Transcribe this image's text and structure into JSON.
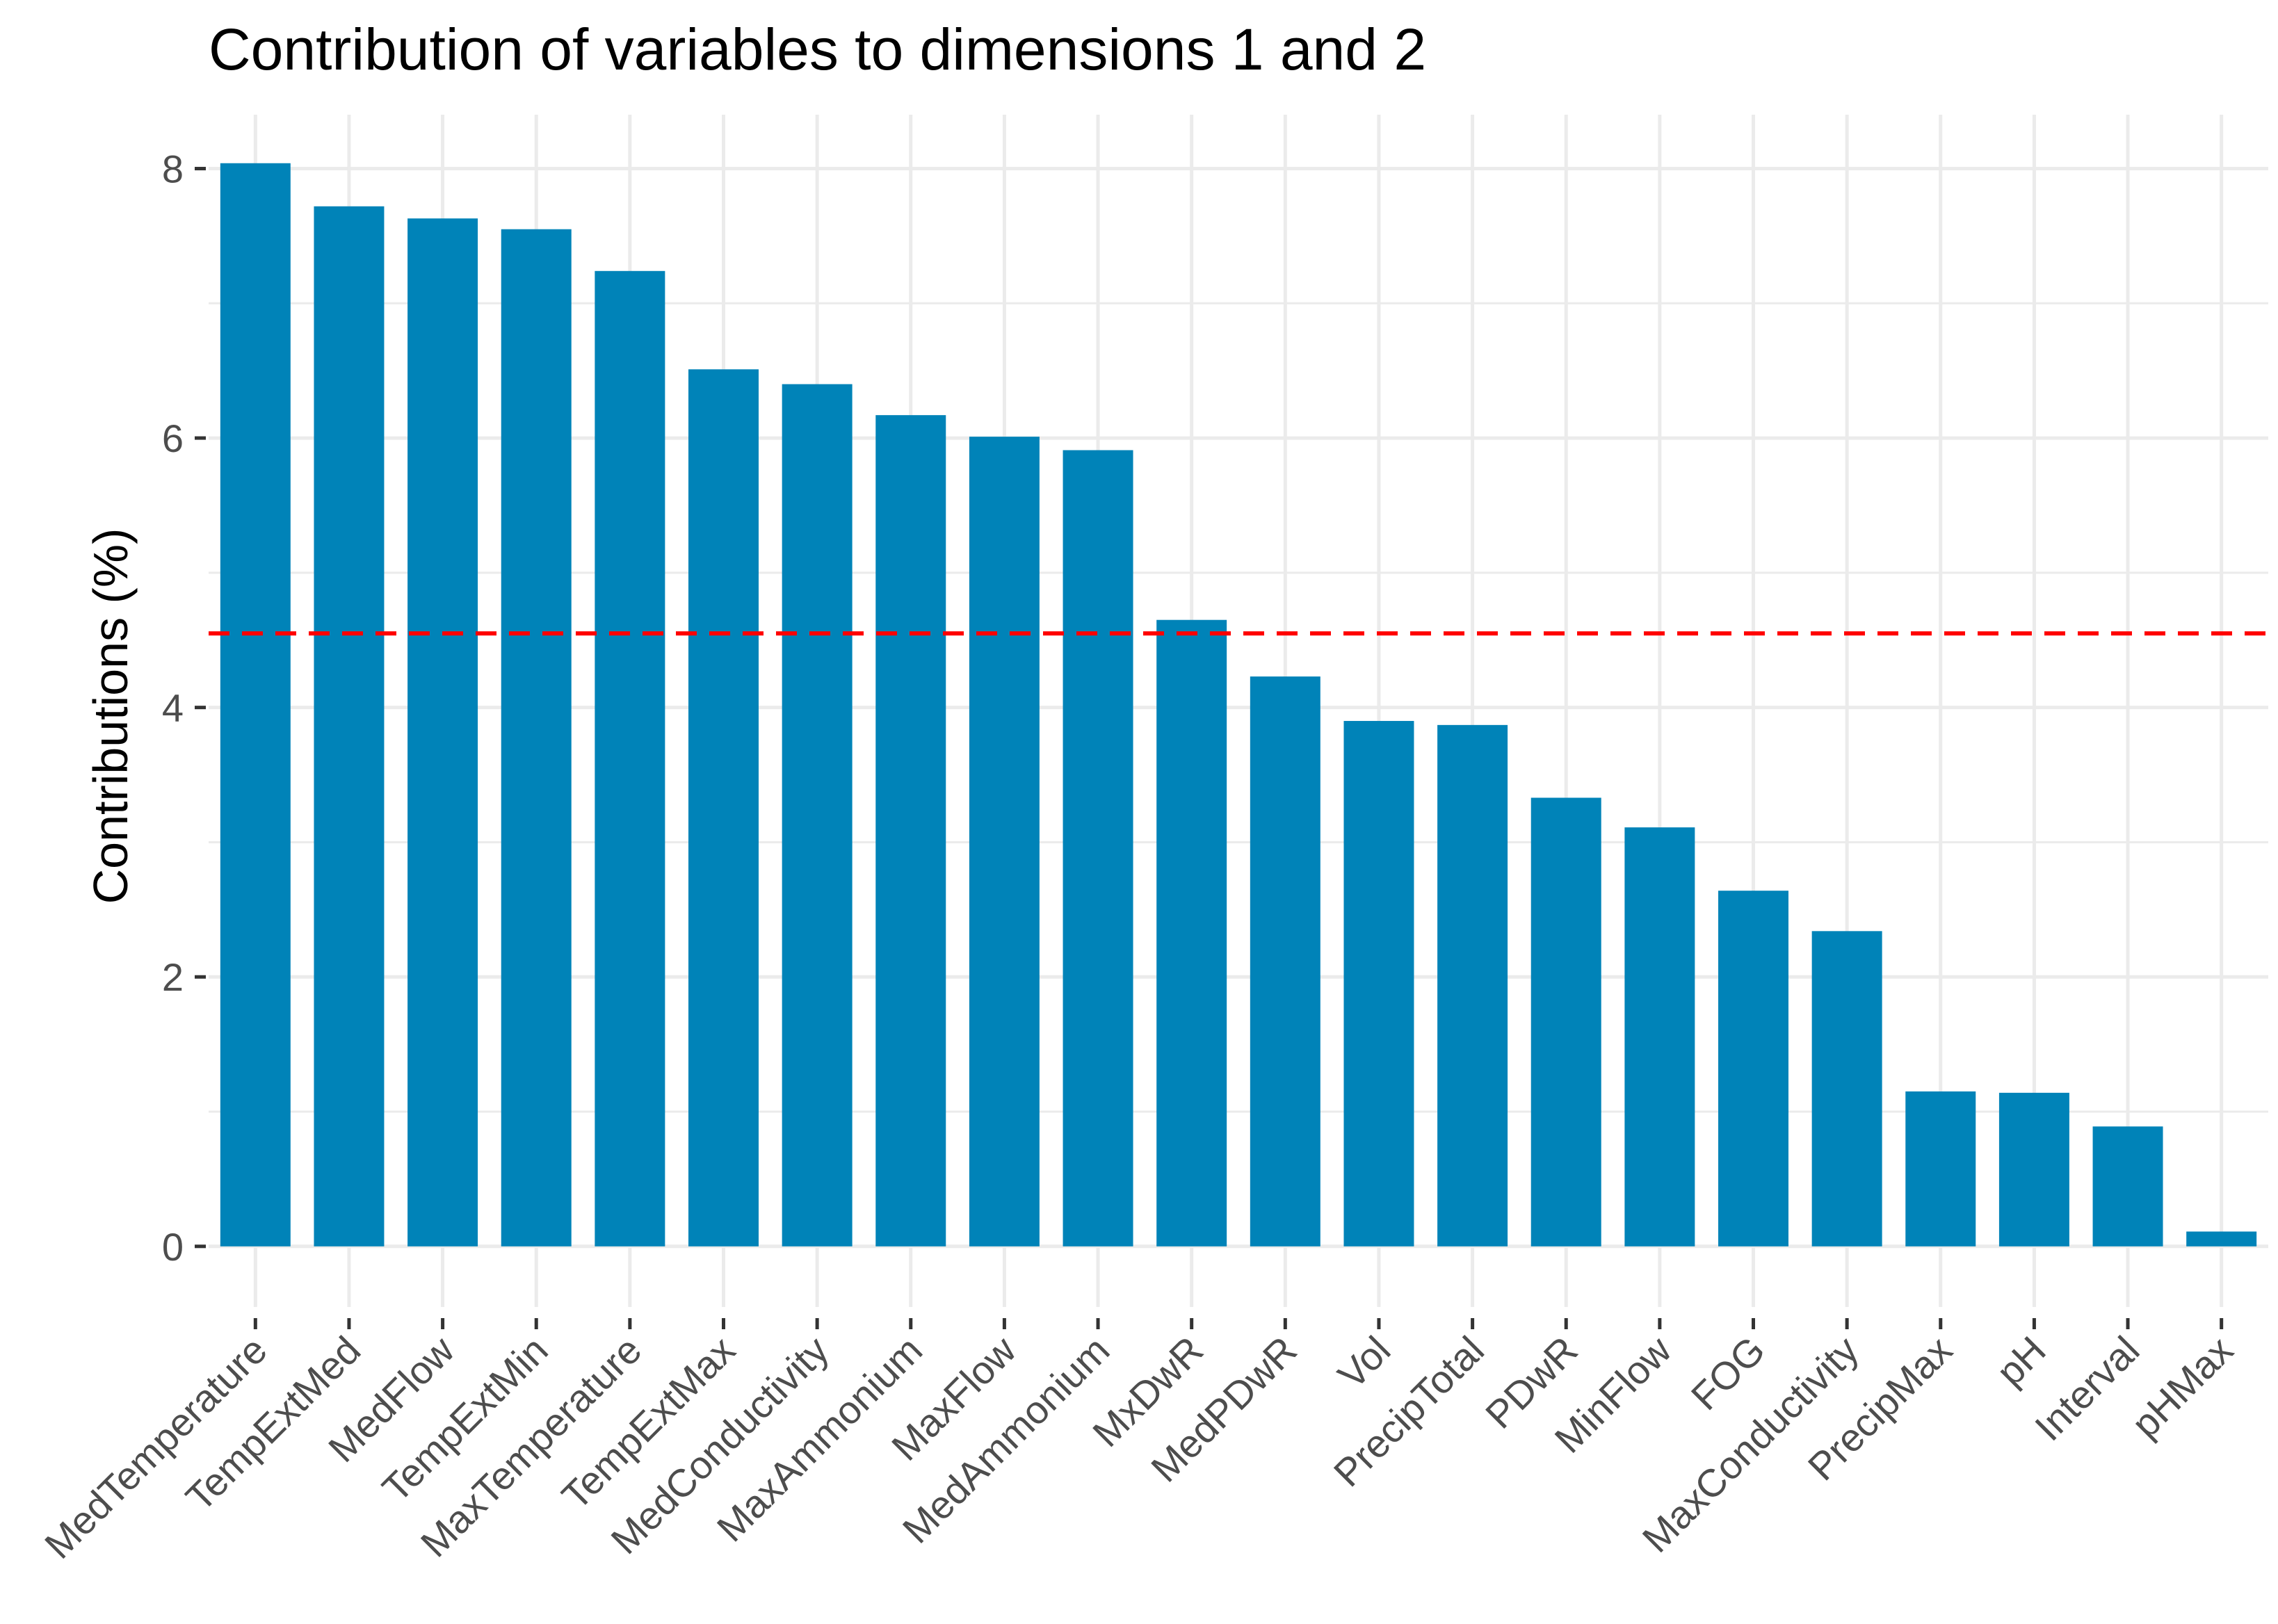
{
  "chart_data": {
    "type": "bar",
    "title": "Contribution of variables to dimensions 1 and 2",
    "xlabel": "",
    "ylabel": "Contributions (%)",
    "ylim": [
      -0.45,
      8.4
    ],
    "yticks": [
      0,
      2,
      4,
      6,
      8
    ],
    "grid": true,
    "categories": [
      "MedTemperature",
      "TempExtMed",
      "MedFlow",
      "TempExtMin",
      "MaxTemperature",
      "TempExtMax",
      "MedConductivity",
      "MaxAmmonium",
      "MaxFlow",
      "MedAmmonium",
      "MxDwR",
      "MedPDwR",
      "Vol",
      "PrecipTotal",
      "PDwR",
      "MinFlow",
      "FOG",
      "MaxConductivity",
      "PrecipMax",
      "pH",
      "Interval",
      "pHMax"
    ],
    "values": [
      8.04,
      7.72,
      7.63,
      7.55,
      7.24,
      6.51,
      6.4,
      6.17,
      6.01,
      5.91,
      4.65,
      4.23,
      3.9,
      3.87,
      3.33,
      3.11,
      2.64,
      2.34,
      1.15,
      1.14,
      0.89,
      0.11
    ],
    "reference_line": {
      "value": 4.55,
      "style": "dashed",
      "color": "#ff0000"
    },
    "bar_color": "#0083b8",
    "grid_color": "#ebebeb"
  }
}
